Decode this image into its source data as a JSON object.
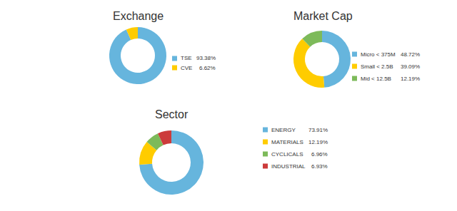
{
  "chart_data": [
    {
      "type": "pie",
      "title": "Exchange",
      "categories": [
        "TSE",
        "CVE"
      ],
      "values": [
        93.38,
        6.62
      ],
      "value_labels": [
        "93.38%",
        "6.62%"
      ],
      "colors": [
        "#66b5dd",
        "#ffcc00"
      ]
    },
    {
      "type": "pie",
      "title": "Market Cap",
      "categories": [
        "Micro < 375M",
        "Small < 2.5B",
        "Mid < 12.5B"
      ],
      "values": [
        48.72,
        39.09,
        12.19
      ],
      "value_labels": [
        "48.72%",
        "39.09%",
        "12.19%"
      ],
      "colors": [
        "#66b5dd",
        "#ffcc00",
        "#7dba5a"
      ]
    },
    {
      "type": "pie",
      "title": "Sector",
      "categories": [
        "ENERGY",
        "MATERIALS",
        "CYCLICALS",
        "INDUSTRIAL"
      ],
      "values": [
        73.91,
        12.19,
        6.96,
        6.93
      ],
      "value_labels": [
        "73.91%",
        "12.19%",
        "6.96%",
        "6.93%"
      ],
      "colors": [
        "#66b5dd",
        "#ffcc00",
        "#7dba5a",
        "#cc3b3b"
      ]
    }
  ]
}
